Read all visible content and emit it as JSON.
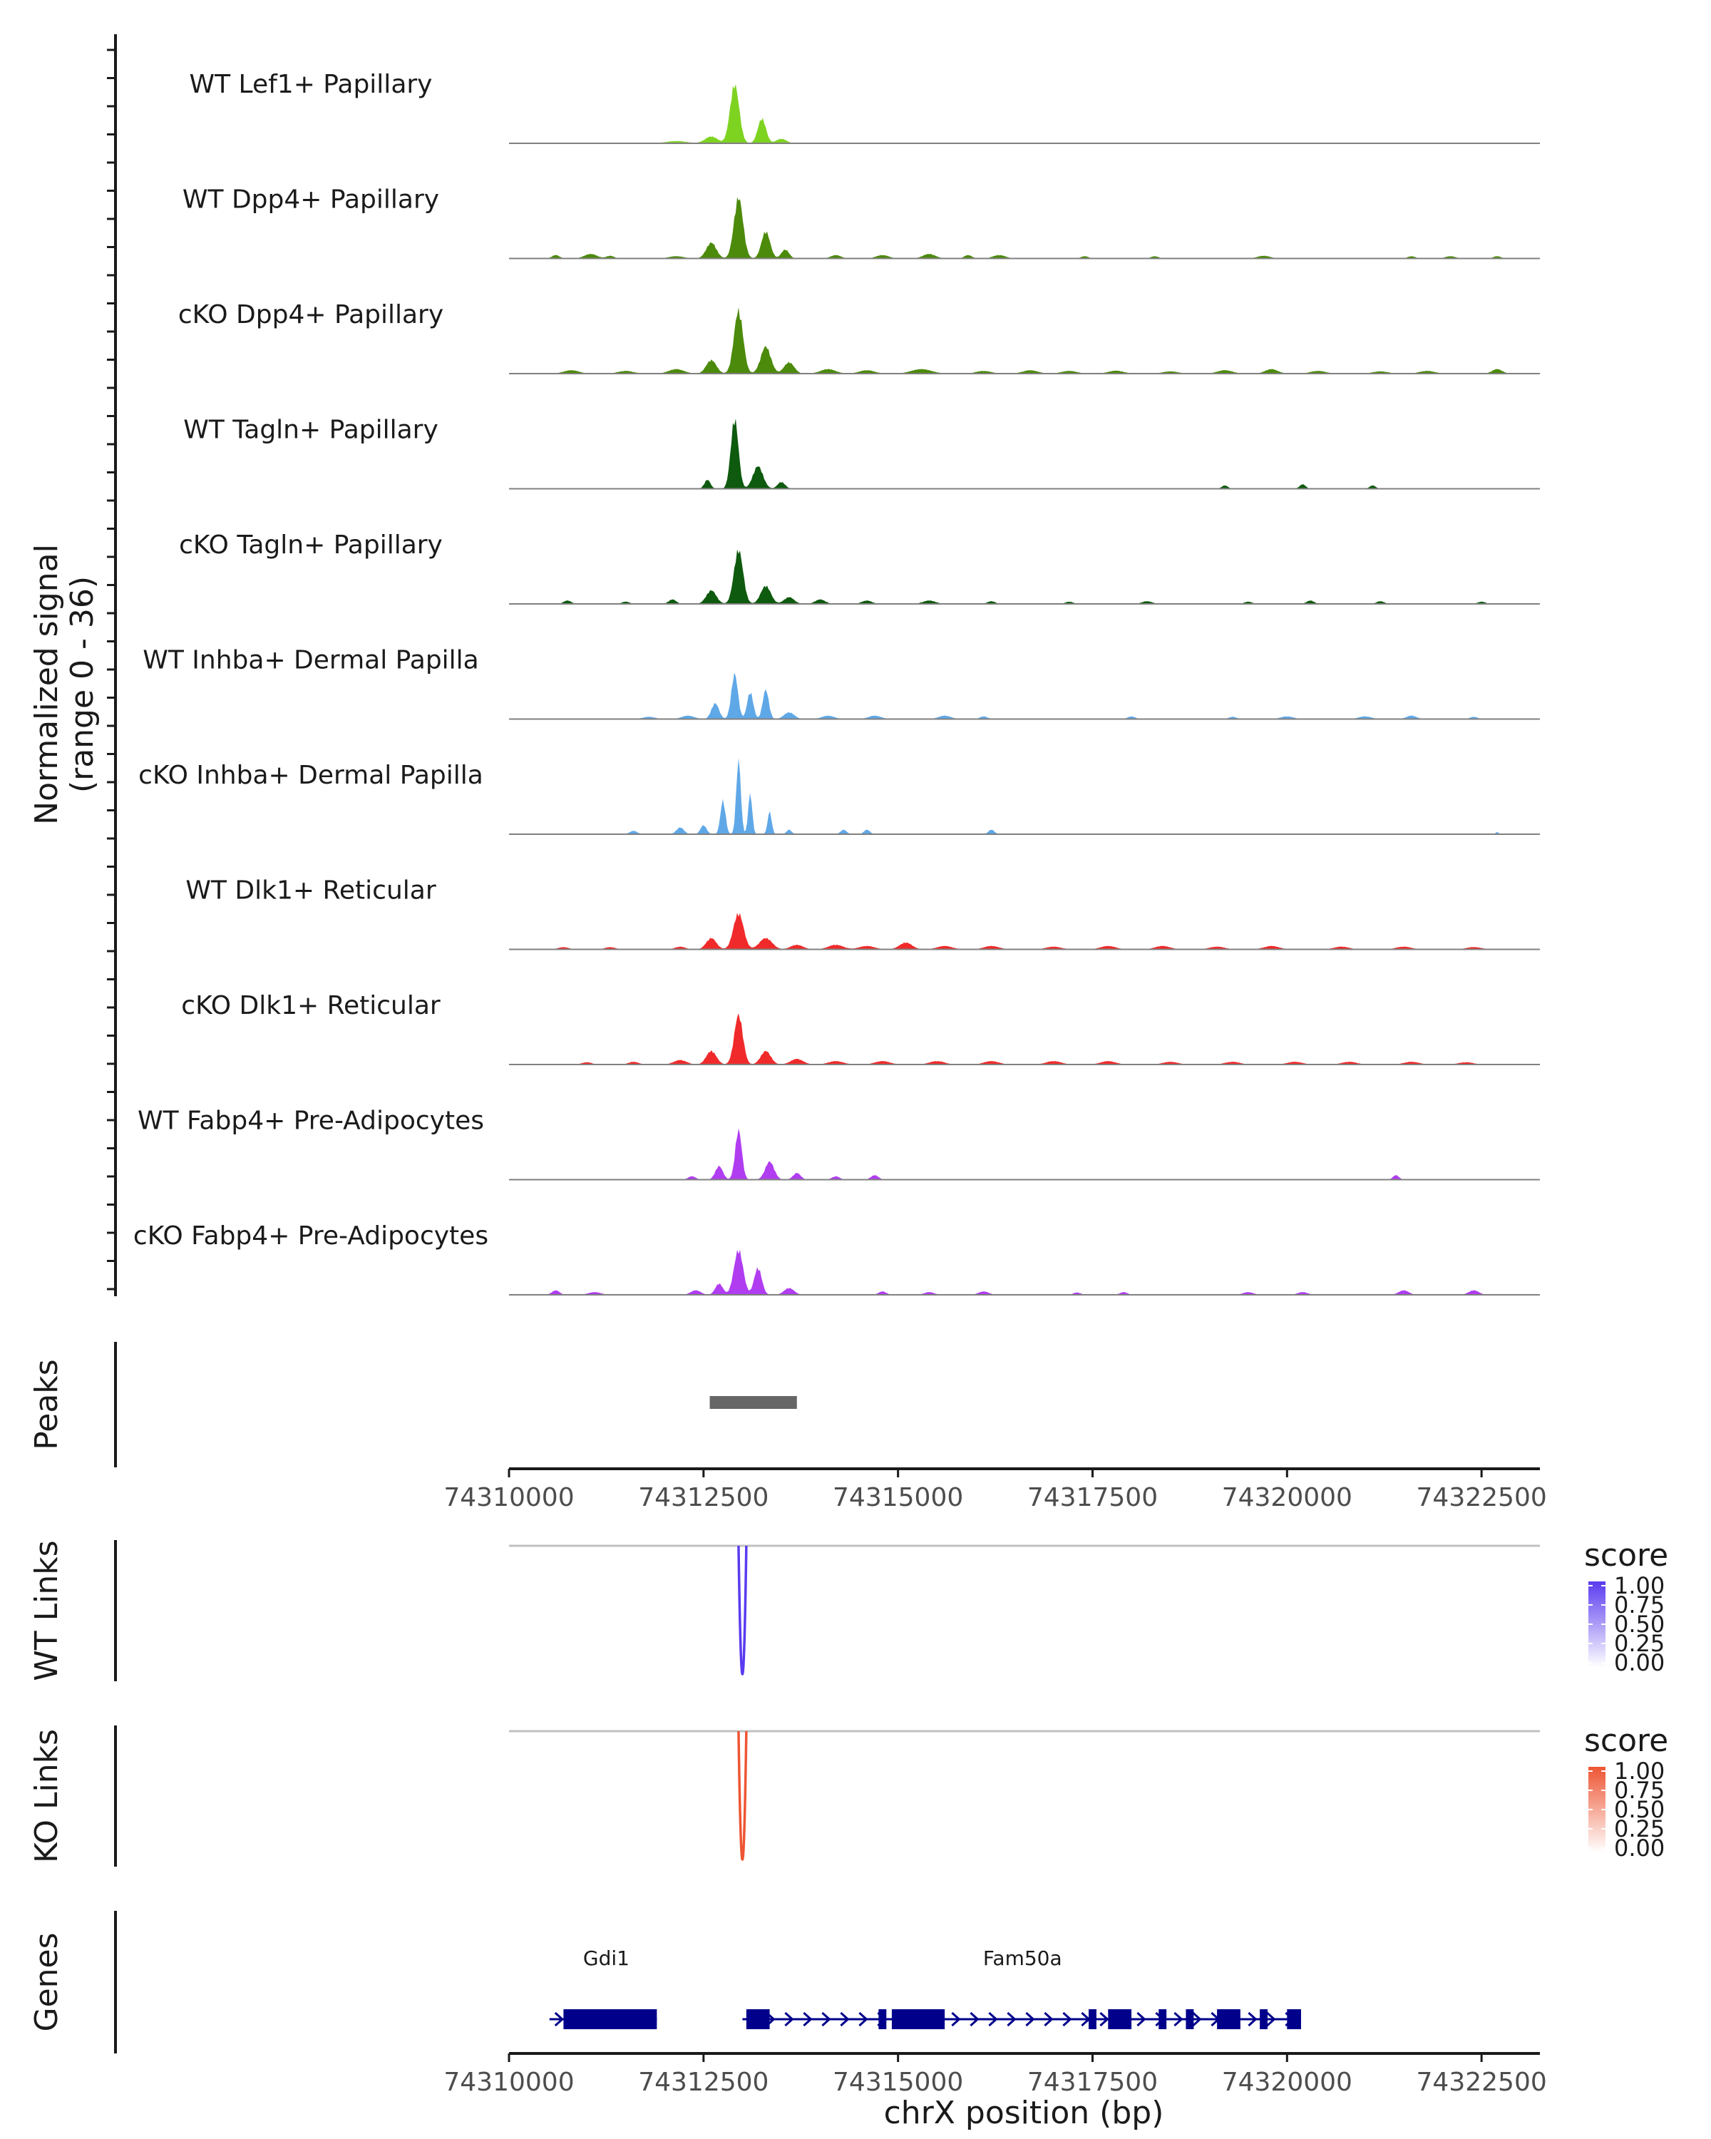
{
  "chart_data": {
    "type": "area",
    "title": "",
    "region": "chrX",
    "xlabel": "chrX position (bp)",
    "xlim": [
      74310000,
      74323250
    ],
    "x_ticks": [
      74310000,
      74312500,
      74315000,
      74317500,
      74320000,
      74322500
    ],
    "x_tick_labels": [
      "74310000",
      "74312500",
      "74315000",
      "74317500",
      "74320000",
      "74322500"
    ],
    "coverage": {
      "ylabel_line1": "Normalized signal",
      "ylabel_line2": "(range 0 - 36)",
      "ylim": [
        0,
        36
      ],
      "series": [
        {
          "name": "WT Lef1+ Papillary",
          "color": "#7ED321",
          "peaks": [
            [
              74312150,
              1,
              400
            ],
            [
              74312600,
              3,
              250
            ],
            [
              74312900,
              26,
              180
            ],
            [
              74313250,
              11,
              160
            ],
            [
              74313500,
              2,
              200
            ]
          ]
        },
        {
          "name": "WT Dpp4+ Papillary",
          "color": "#4C8A0B",
          "peaks": [
            [
              74310600,
              1.5,
              150
            ],
            [
              74311050,
              2,
              250
            ],
            [
              74311300,
              1.2,
              150
            ],
            [
              74312150,
              1,
              300
            ],
            [
              74312600,
              7,
              200
            ],
            [
              74312950,
              27,
              180
            ],
            [
              74313300,
              12,
              170
            ],
            [
              74313550,
              4,
              150
            ],
            [
              74314200,
              1.5,
              200
            ],
            [
              74314800,
              1.5,
              250
            ],
            [
              74315400,
              2,
              250
            ],
            [
              74315900,
              1.5,
              150
            ],
            [
              74316300,
              1.5,
              250
            ],
            [
              74317400,
              1,
              150
            ],
            [
              74318300,
              1,
              150
            ],
            [
              74319700,
              1.2,
              250
            ],
            [
              74321600,
              1,
              150
            ],
            [
              74322100,
              1,
              200
            ],
            [
              74322700,
              1,
              150
            ]
          ]
        },
        {
          "name": "cKO Dpp4+ Papillary",
          "color": "#4C8A0B",
          "peaks": [
            [
              74310800,
              1.5,
              300
            ],
            [
              74311500,
              1.2,
              300
            ],
            [
              74312150,
              2,
              300
            ],
            [
              74312600,
              6,
              200
            ],
            [
              74312950,
              28,
              180
            ],
            [
              74313300,
              12,
              200
            ],
            [
              74313600,
              5,
              200
            ],
            [
              74314100,
              2,
              300
            ],
            [
              74314600,
              1.5,
              300
            ],
            [
              74315300,
              2,
              400
            ],
            [
              74316100,
              1.2,
              300
            ],
            [
              74316700,
              1.5,
              300
            ],
            [
              74317200,
              1.2,
              300
            ],
            [
              74317800,
              1.3,
              300
            ],
            [
              74318500,
              1,
              300
            ],
            [
              74319200,
              1.5,
              300
            ],
            [
              74319800,
              2,
              250
            ],
            [
              74320400,
              1.2,
              300
            ],
            [
              74321200,
              1,
              300
            ],
            [
              74321800,
              1.2,
              300
            ],
            [
              74322700,
              2,
              200
            ]
          ]
        },
        {
          "name": "WT Tagln+ Papillary",
          "color": "#0E5A0E",
          "peaks": [
            [
              74312550,
              4,
              120
            ],
            [
              74312900,
              31,
              150
            ],
            [
              74313200,
              10,
              200
            ],
            [
              74313500,
              3,
              150
            ],
            [
              74319200,
              1.5,
              120
            ],
            [
              74320200,
              2,
              120
            ],
            [
              74321100,
              1.5,
              120
            ]
          ]
        },
        {
          "name": "cKO Tagln+ Papillary",
          "color": "#0E5A0E",
          "peaks": [
            [
              74310750,
              1.5,
              150
            ],
            [
              74311500,
              1,
              150
            ],
            [
              74312100,
              2,
              150
            ],
            [
              74312600,
              6,
              200
            ],
            [
              74312950,
              24,
              180
            ],
            [
              74313300,
              8,
              200
            ],
            [
              74313600,
              3,
              200
            ],
            [
              74314000,
              2,
              200
            ],
            [
              74314600,
              1.5,
              200
            ],
            [
              74315400,
              1.5,
              250
            ],
            [
              74316200,
              1.2,
              150
            ],
            [
              74317200,
              1,
              150
            ],
            [
              74318200,
              1.2,
              200
            ],
            [
              74319500,
              1,
              150
            ],
            [
              74320300,
              1.5,
              150
            ],
            [
              74321200,
              1.2,
              150
            ],
            [
              74322500,
              1,
              150
            ]
          ]
        },
        {
          "name": "WT Inhba+ Dermal Papilla",
          "color": "#5FA8E8",
          "peaks": [
            [
              74311800,
              1,
              250
            ],
            [
              74312300,
              1.5,
              250
            ],
            [
              74312650,
              7,
              150
            ],
            [
              74312900,
              20,
              130
            ],
            [
              74313100,
              12,
              120
            ],
            [
              74313300,
              13,
              120
            ],
            [
              74313600,
              3,
              200
            ],
            [
              74314100,
              1.5,
              250
            ],
            [
              74314700,
              1.5,
              250
            ],
            [
              74315600,
              1.5,
              250
            ],
            [
              74316100,
              1.2,
              150
            ],
            [
              74318000,
              1.2,
              150
            ],
            [
              74319300,
              1,
              150
            ],
            [
              74320000,
              1.2,
              250
            ],
            [
              74321000,
              1.2,
              250
            ],
            [
              74321600,
              1.5,
              200
            ],
            [
              74322400,
              1,
              150
            ]
          ]
        },
        {
          "name": "cKO Inhba+ Dermal Papilla",
          "color": "#5FA8E8",
          "peaks": [
            [
              74311600,
              1.5,
              150
            ],
            [
              74312200,
              3,
              150
            ],
            [
              74312500,
              4,
              120
            ],
            [
              74312750,
              15,
              100
            ],
            [
              74312950,
              33,
              90
            ],
            [
              74313100,
              18,
              80
            ],
            [
              74313350,
              10,
              80
            ],
            [
              74313600,
              2,
              100
            ],
            [
              74314300,
              2,
              120
            ],
            [
              74314600,
              2,
              120
            ],
            [
              74316200,
              2,
              120
            ],
            [
              74322700,
              1,
              60
            ]
          ]
        },
        {
          "name": "WT Dlk1+ Reticular",
          "color": "#F02A2A",
          "peaks": [
            [
              74310700,
              1,
              200
            ],
            [
              74311300,
              1,
              200
            ],
            [
              74312200,
              1.2,
              200
            ],
            [
              74312600,
              5,
              200
            ],
            [
              74312950,
              16,
              200
            ],
            [
              74313300,
              5,
              250
            ],
            [
              74313700,
              2,
              250
            ],
            [
              74314200,
              2,
              300
            ],
            [
              74314600,
              1.5,
              300
            ],
            [
              74315100,
              3,
              250
            ],
            [
              74315600,
              1.5,
              300
            ],
            [
              74316200,
              1.5,
              300
            ],
            [
              74317000,
              1.2,
              300
            ],
            [
              74317700,
              1.5,
              300
            ],
            [
              74318400,
              1.5,
              300
            ],
            [
              74319100,
              1.2,
              300
            ],
            [
              74319800,
              1.5,
              300
            ],
            [
              74320700,
              1.2,
              300
            ],
            [
              74321500,
              1.2,
              300
            ],
            [
              74322400,
              1,
              300
            ]
          ]
        },
        {
          "name": "cKO Dlk1+ Reticular",
          "color": "#F02A2A",
          "peaks": [
            [
              74311000,
              1,
              200
            ],
            [
              74311600,
              1.2,
              200
            ],
            [
              74312200,
              2,
              250
            ],
            [
              74312600,
              6,
              200
            ],
            [
              74312950,
              22,
              170
            ],
            [
              74313300,
              6,
              200
            ],
            [
              74313700,
              2.5,
              250
            ],
            [
              74314200,
              1.5,
              300
            ],
            [
              74314800,
              1.5,
              300
            ],
            [
              74315500,
              1.5,
              300
            ],
            [
              74316200,
              1.5,
              300
            ],
            [
              74317000,
              1.5,
              300
            ],
            [
              74317700,
              1.5,
              300
            ],
            [
              74318500,
              1.2,
              300
            ],
            [
              74319300,
              1.2,
              300
            ],
            [
              74320100,
              1.2,
              300
            ],
            [
              74320800,
              1.2,
              300
            ],
            [
              74321600,
              1.2,
              300
            ],
            [
              74322300,
              1,
              300
            ]
          ]
        },
        {
          "name": "WT Fabp4+ Pre-Adipocytes",
          "color": "#B03DF0",
          "peaks": [
            [
              74312350,
              1.5,
              150
            ],
            [
              74312700,
              6,
              150
            ],
            [
              74312950,
              22,
              130
            ],
            [
              74313350,
              8,
              180
            ],
            [
              74313700,
              3,
              150
            ],
            [
              74314200,
              1.5,
              150
            ],
            [
              74314700,
              2,
              150
            ],
            [
              74321400,
              2,
              120
            ]
          ]
        },
        {
          "name": "cKO Fabp4+ Pre-Adipocytes",
          "color": "#B03DF0",
          "peaks": [
            [
              74310600,
              2,
              150
            ],
            [
              74311100,
              1.2,
              250
            ],
            [
              74312400,
              2,
              200
            ],
            [
              74312700,
              5,
              150
            ],
            [
              74312950,
              20,
              180
            ],
            [
              74313200,
              12,
              150
            ],
            [
              74313600,
              3,
              200
            ],
            [
              74314800,
              1.5,
              150
            ],
            [
              74315400,
              1.2,
              200
            ],
            [
              74316100,
              1.5,
              200
            ],
            [
              74317300,
              1,
              150
            ],
            [
              74317900,
              1.2,
              150
            ],
            [
              74319500,
              1.2,
              200
            ],
            [
              74320200,
              1.2,
              200
            ],
            [
              74321500,
              2,
              200
            ],
            [
              74322400,
              2,
              200
            ]
          ]
        }
      ]
    },
    "peaks_track": {
      "label": "Peaks",
      "color": "#666666",
      "peaks": [
        [
          74312580,
          74313700
        ]
      ]
    },
    "links": [
      {
        "label": "WT Links",
        "legend_title": "score",
        "color": "#5B3BF0",
        "score": 1.0,
        "start": 74312950,
        "end": 74313050,
        "legend_ticks": [
          "1.00",
          "0.75",
          "0.50",
          "0.25",
          "0.00"
        ]
      },
      {
        "label": "KO Links",
        "legend_title": "score",
        "color": "#EE5533",
        "score": 1.0,
        "start": 74312950,
        "end": 74313050,
        "legend_ticks": [
          "1.00",
          "0.75",
          "0.50",
          "0.25",
          "0.00"
        ]
      }
    ],
    "genes_track": {
      "label": "Genes",
      "color": "#00008B",
      "genes": [
        {
          "name": "Gdi1",
          "start": 74310520,
          "end": 74311900,
          "strand": "+",
          "exons": [
            [
              74310700,
              74311900
            ]
          ]
        },
        {
          "name": "Fam50a",
          "start": 74313000,
          "end": 74320180,
          "strand": "+",
          "exons": [
            [
              74313050,
              74313350
            ],
            [
              74314750,
              74314850
            ],
            [
              74314920,
              74315600
            ],
            [
              74317450,
              74317550
            ],
            [
              74317700,
              74318000
            ],
            [
              74318350,
              74318450
            ],
            [
              74318700,
              74318800
            ],
            [
              74319100,
              74319400
            ],
            [
              74319650,
              74319750
            ],
            [
              74320000,
              74320180
            ]
          ]
        }
      ]
    }
  }
}
